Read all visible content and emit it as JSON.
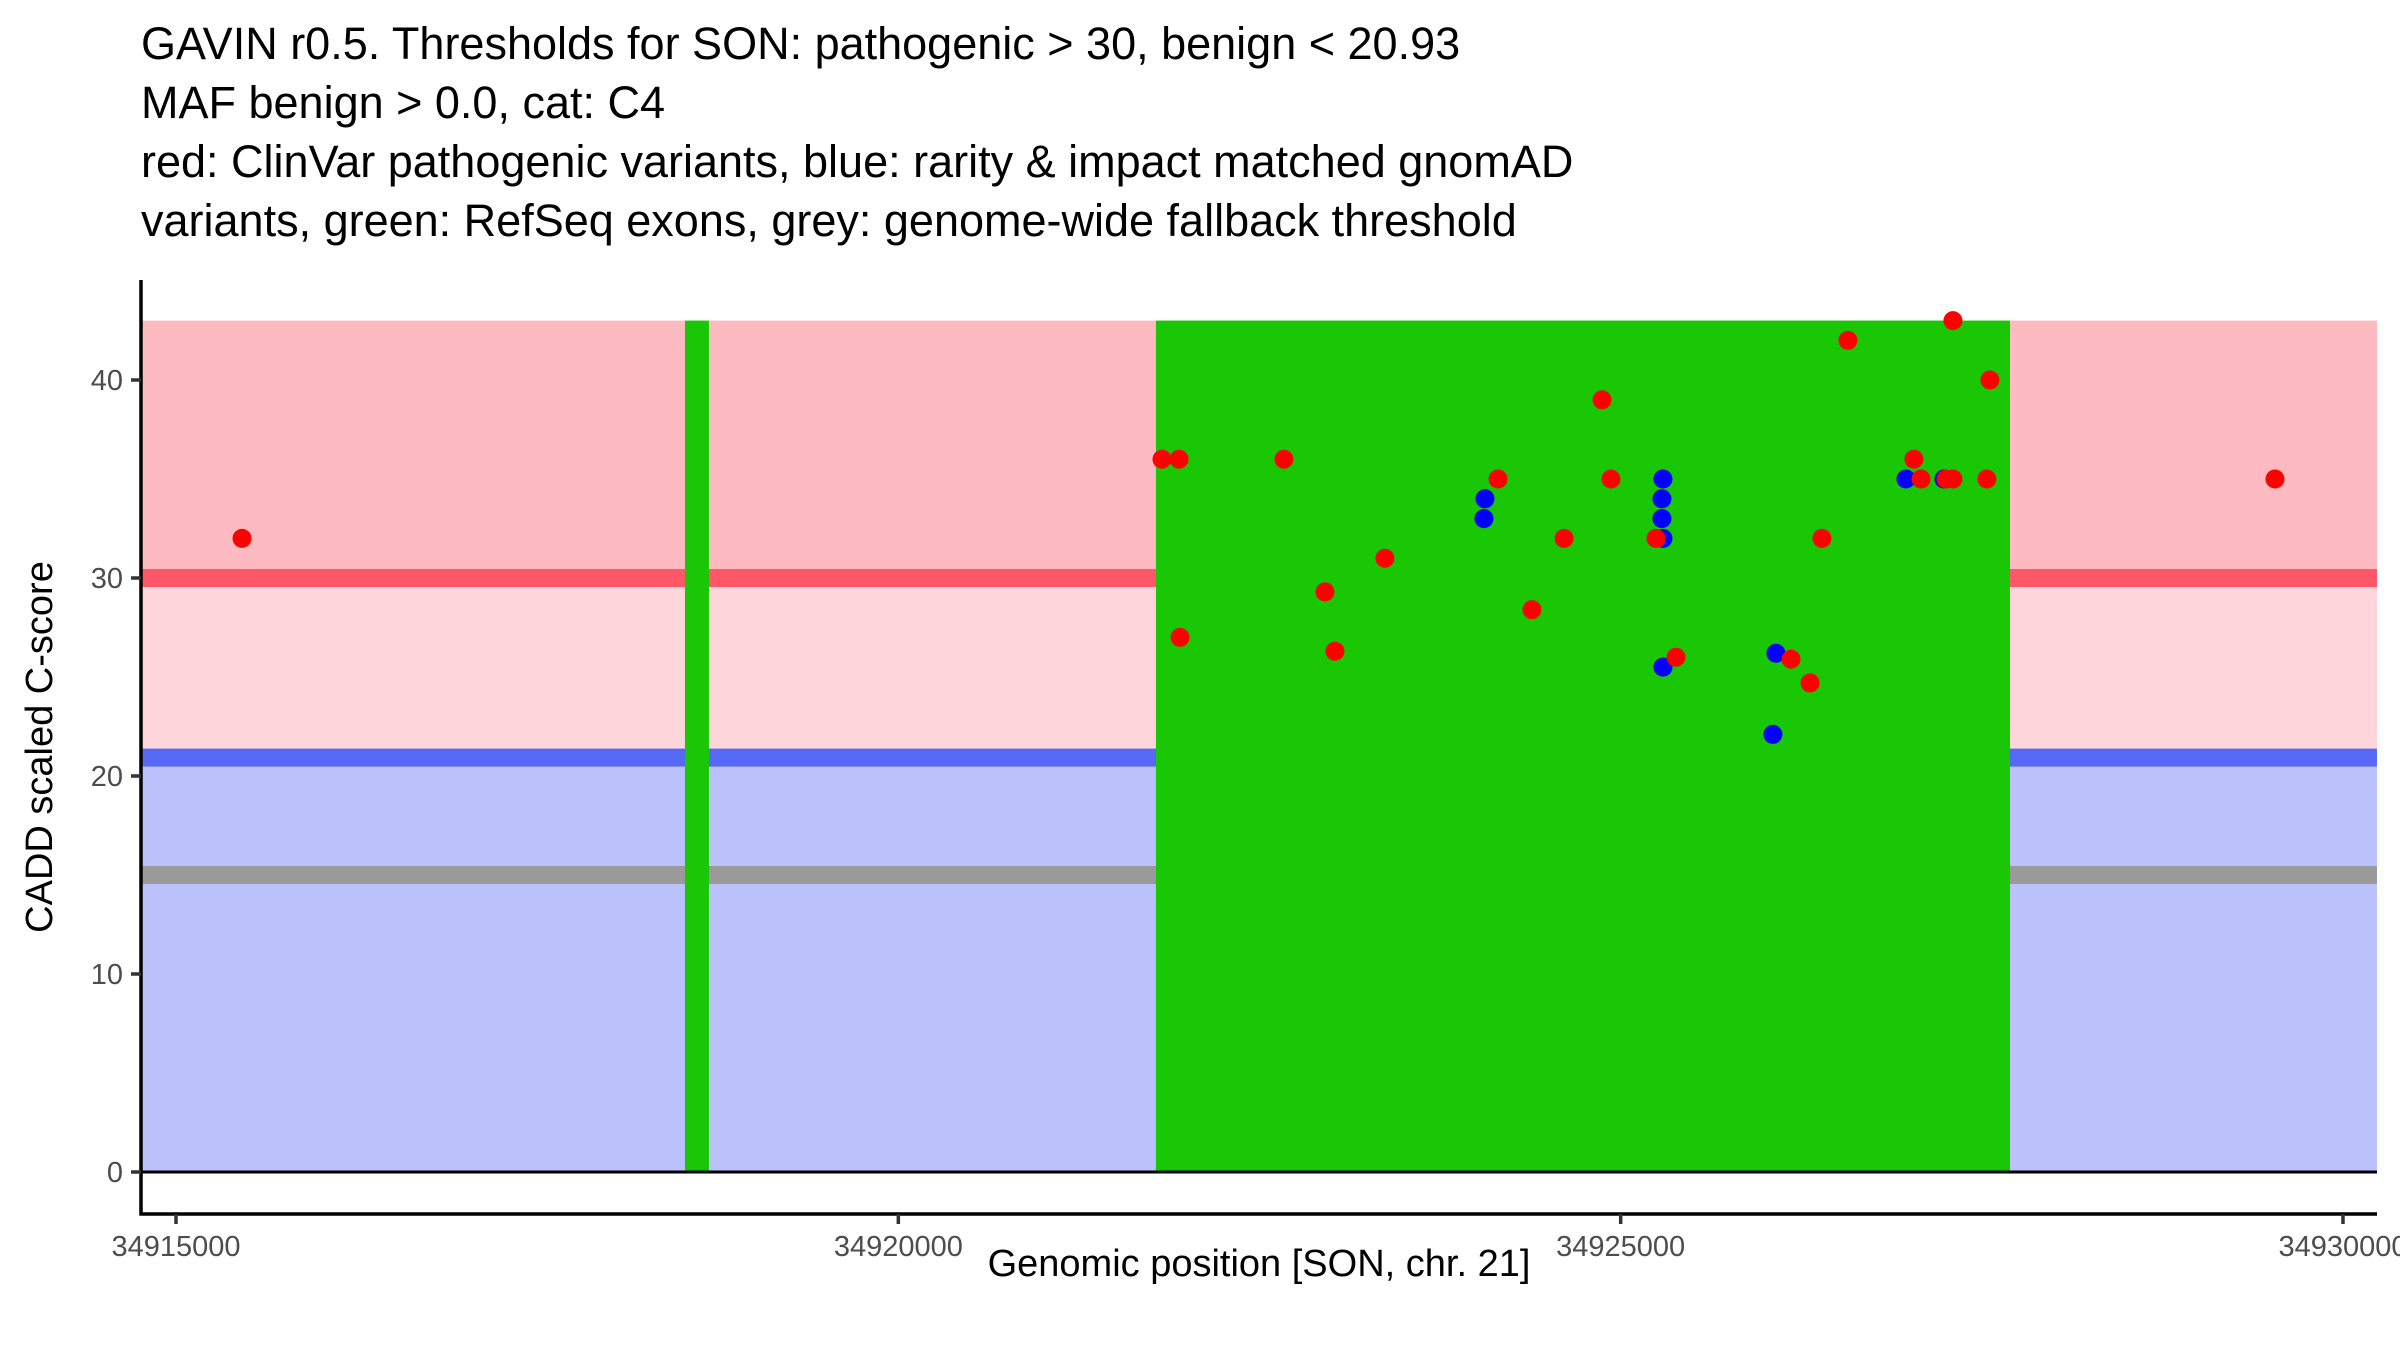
{
  "chart_data": {
    "type": "scatter",
    "title_lines": [
      "GAVIN r0.5. Thresholds for SON: pathogenic > 30, benign < 20.93",
      "MAF benign > 0.0, cat: C4",
      "red: ClinVar pathogenic variants, blue: rarity & impact matched gnomAD",
      "variants, green: RefSeq exons, grey: genome-wide fallback threshold"
    ],
    "xlabel": "Genomic position [SON, chr. 21]",
    "ylabel": "CADD scaled C-score",
    "xlim": [
      34914760,
      34930235
    ],
    "ylim": [
      -2.1,
      44.3
    ],
    "x_ticks": [
      34915000,
      34920000,
      34925000,
      34930000
    ],
    "x_tick_labels": [
      "34915000",
      "34920000",
      "34925000",
      "34930000"
    ],
    "y_ticks": [
      0,
      10,
      20,
      30,
      40
    ],
    "y_tick_labels": [
      "0",
      "10",
      "20",
      "30",
      "40"
    ],
    "grid": false,
    "legend": "none",
    "colors": {
      "pathogenic_zone": "#fdbbc1",
      "vus_zone": "#fed5da",
      "benign_zone": "#bbc1fa",
      "pathogenic_threshold": "#fe5868",
      "benign_threshold": "#5669f5",
      "fallback_threshold": "#9a9a9a",
      "exon": "#1ac705",
      "clinvar_point": "#ff0000",
      "gnomad_point": "#0000ff"
    },
    "zones": {
      "x_range": [
        34914760,
        34930235
      ],
      "pathogenic": [
        30,
        43
      ],
      "vus": [
        20.93,
        30
      ],
      "benign": [
        0,
        20.93
      ]
    },
    "thresholds": {
      "pathogenic": 30,
      "benign": 20.93,
      "fallback": 15
    },
    "exons": [
      {
        "start": 34918523,
        "end": 34918689,
        "ymin": 0,
        "ymax": 43
      },
      {
        "start": 34921783,
        "end": 34927695,
        "ymin": 0,
        "ymax": 43
      }
    ],
    "series": [
      {
        "name": "gnomAD matched variants",
        "color": "blue",
        "points": [
          {
            "x": 34924061,
            "y": 34
          },
          {
            "x": 34924054,
            "y": 33
          },
          {
            "x": 34925293,
            "y": 35
          },
          {
            "x": 34925286,
            "y": 34
          },
          {
            "x": 34925286,
            "y": 33
          },
          {
            "x": 34925293,
            "y": 32
          },
          {
            "x": 34925293,
            "y": 25.5
          },
          {
            "x": 34926075,
            "y": 26.2
          },
          {
            "x": 34926054,
            "y": 22.1
          },
          {
            "x": 34926975,
            "y": 35
          },
          {
            "x": 34927238,
            "y": 35
          }
        ]
      },
      {
        "name": "ClinVar pathogenic variants",
        "color": "red",
        "points": [
          {
            "x": 34915457,
            "y": 32
          },
          {
            "x": 34921825,
            "y": 36
          },
          {
            "x": 34921943,
            "y": 36
          },
          {
            "x": 34921950,
            "y": 27
          },
          {
            "x": 34922669,
            "y": 36
          },
          {
            "x": 34922953,
            "y": 29.3
          },
          {
            "x": 34923022,
            "y": 26.3
          },
          {
            "x": 34923368,
            "y": 31
          },
          {
            "x": 34924151,
            "y": 35
          },
          {
            "x": 34924386,
            "y": 28.4
          },
          {
            "x": 34924608,
            "y": 32
          },
          {
            "x": 34924871,
            "y": 39
          },
          {
            "x": 34924933,
            "y": 35
          },
          {
            "x": 34925244,
            "y": 32
          },
          {
            "x": 34925383,
            "y": 26
          },
          {
            "x": 34926179,
            "y": 25.9
          },
          {
            "x": 34926311,
            "y": 24.7
          },
          {
            "x": 34926393,
            "y": 32
          },
          {
            "x": 34926573,
            "y": 42
          },
          {
            "x": 34927030,
            "y": 36
          },
          {
            "x": 34927079,
            "y": 35
          },
          {
            "x": 34927252,
            "y": 35
          },
          {
            "x": 34927300,
            "y": 35
          },
          {
            "x": 34927300,
            "y": 43
          },
          {
            "x": 34927535,
            "y": 35
          },
          {
            "x": 34927556,
            "y": 40
          },
          {
            "x": 34929529,
            "y": 35
          }
        ]
      }
    ]
  }
}
